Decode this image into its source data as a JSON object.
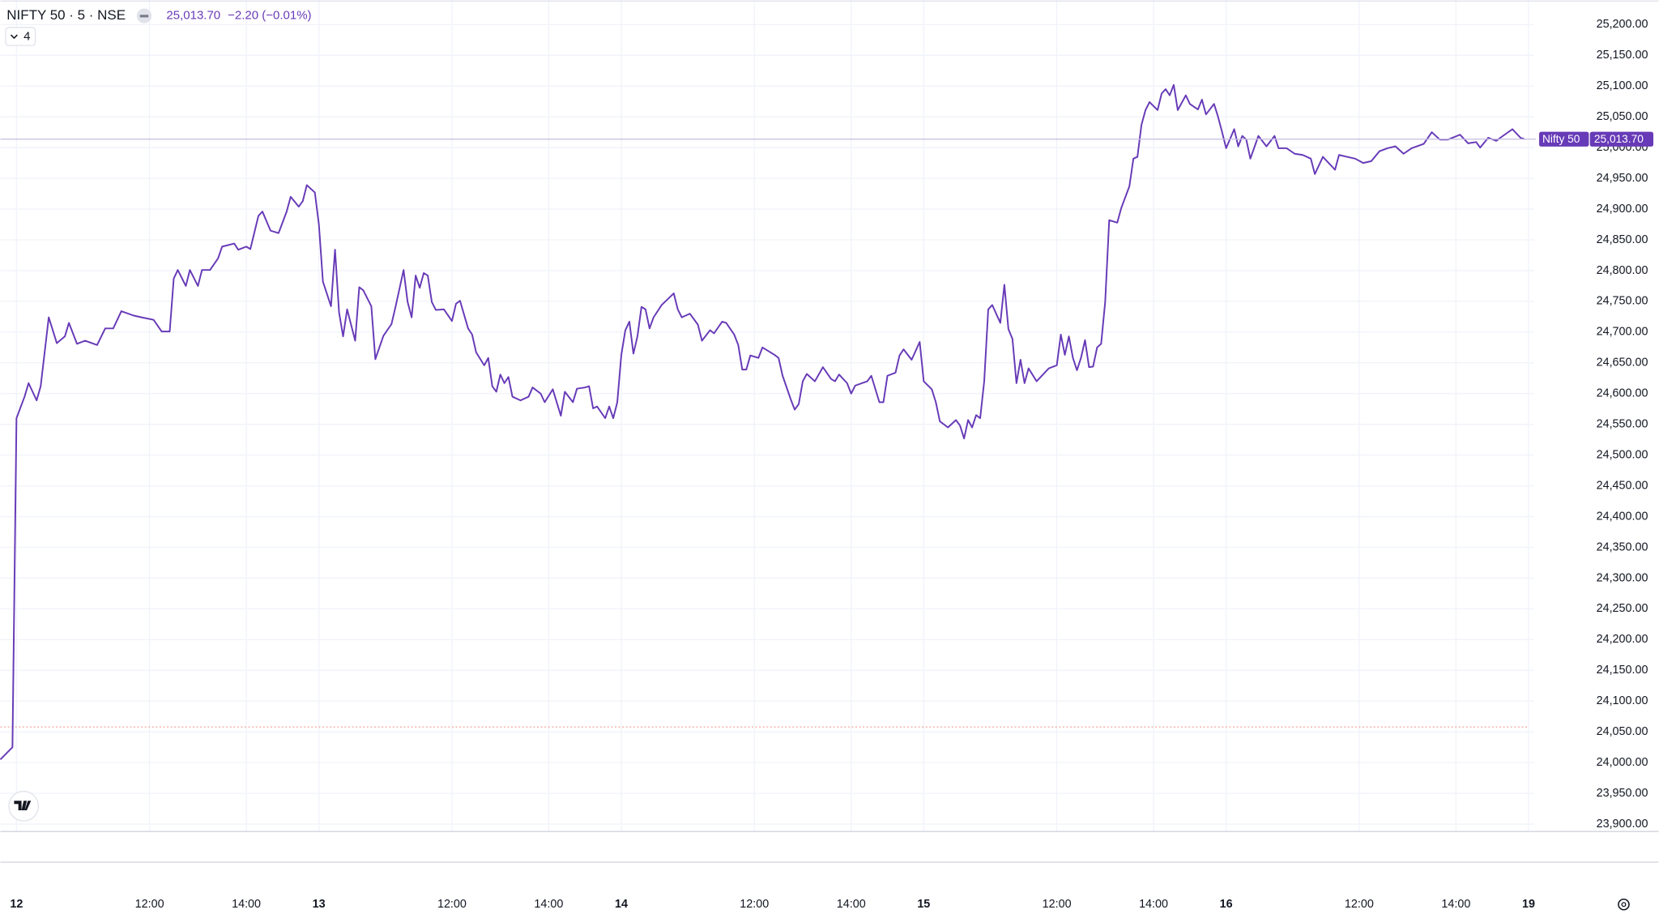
{
  "chart_data": {
    "type": "line",
    "title": "NIFTY 50 · 5 · NSE",
    "last_value_label": "25,013.70",
    "change_label": "−2.20 (−0.01%)",
    "indicator_count": 4,
    "color": "#673ab7",
    "grid": true,
    "reference_line": {
      "value": 24058,
      "color": "#f28b82"
    },
    "xlim": [
      -4,
      375
    ],
    "xticks": [
      {
        "value": 0,
        "label": "12"
      },
      {
        "value": 33,
        "label": "12:00"
      },
      {
        "value": 57,
        "label": "14:00"
      },
      {
        "value": 75,
        "label": "13"
      },
      {
        "value": 108,
        "label": "12:00"
      },
      {
        "value": 132,
        "label": "14:00"
      },
      {
        "value": 150,
        "label": "14"
      },
      {
        "value": 183,
        "label": "12:00"
      },
      {
        "value": 207,
        "label": "14:00"
      },
      {
        "value": 225,
        "label": "15"
      },
      {
        "value": 258,
        "label": "12:00"
      },
      {
        "value": 282,
        "label": "14:00"
      },
      {
        "value": 300,
        "label": "16"
      },
      {
        "value": 333,
        "label": "12:00"
      },
      {
        "value": 357,
        "label": "14:00"
      },
      {
        "value": 375,
        "label": "19"
      }
    ],
    "ylim": [
      23888,
      25240
    ],
    "yticks": [
      {
        "value": 23900,
        "label": "23,900.00"
      },
      {
        "value": 23950,
        "label": "23,950.00"
      },
      {
        "value": 24000,
        "label": "24,000.00"
      },
      {
        "value": 24050,
        "label": "24,050.00"
      },
      {
        "value": 24100,
        "label": "24,100.00"
      },
      {
        "value": 24150,
        "label": "24,150.00"
      },
      {
        "value": 24200,
        "label": "24,200.00"
      },
      {
        "value": 24250,
        "label": "24,250.00"
      },
      {
        "value": 24300,
        "label": "24,300.00"
      },
      {
        "value": 24350,
        "label": "24,350.00"
      },
      {
        "value": 24400,
        "label": "24,400.00"
      },
      {
        "value": 24450,
        "label": "24,450.00"
      },
      {
        "value": 24500,
        "label": "24,500.00"
      },
      {
        "value": 24550,
        "label": "24,550.00"
      },
      {
        "value": 24600,
        "label": "24,600.00"
      },
      {
        "value": 24650,
        "label": "24,650.00"
      },
      {
        "value": 24700,
        "label": "24,700.00"
      },
      {
        "value": 24750,
        "label": "24,750.00"
      },
      {
        "value": 24800,
        "label": "24,800.00"
      },
      {
        "value": 24850,
        "label": "24,850.00"
      },
      {
        "value": 24900,
        "label": "24,900.00"
      },
      {
        "value": 24950,
        "label": "24,950.00"
      },
      {
        "value": 25000,
        "label": "25,000.00"
      },
      {
        "value": 25050,
        "label": "25,050.00"
      },
      {
        "value": 25100,
        "label": "25,100.00"
      },
      {
        "value": 25150,
        "label": "25,150.00"
      },
      {
        "value": 25200,
        "label": "25,200.00"
      }
    ],
    "x": [
      -4,
      -1,
      0,
      2,
      3,
      5,
      6,
      8,
      10,
      12,
      13,
      15,
      17,
      20,
      22,
      24,
      26,
      29,
      31,
      34,
      36,
      38,
      39,
      40,
      42,
      43,
      45,
      46,
      48,
      50,
      51,
      54,
      55,
      57,
      58,
      60,
      61,
      63,
      65,
      67,
      68,
      70,
      71,
      72,
      74,
      75,
      76,
      78,
      79,
      80,
      81,
      82,
      84,
      85,
      86,
      88,
      89,
      91,
      93,
      94,
      96,
      97,
      98,
      99,
      100,
      101,
      102,
      103,
      104,
      106,
      108,
      109,
      110,
      112,
      113,
      114,
      116,
      117,
      118,
      119,
      120,
      121,
      122,
      123,
      125,
      127,
      128,
      130,
      131,
      133,
      135,
      136,
      138,
      139,
      141,
      142,
      143,
      144,
      146,
      147,
      148,
      149,
      150,
      151,
      152,
      153,
      154,
      155,
      156,
      157,
      158,
      160,
      163,
      164,
      165,
      167,
      169,
      170,
      172,
      173,
      175,
      176,
      178,
      179,
      180,
      181,
      182,
      184,
      185,
      188,
      189,
      190,
      192,
      193,
      194,
      195,
      196,
      198,
      200,
      202,
      203,
      204,
      206,
      207,
      208,
      211,
      212,
      214,
      215,
      216,
      218,
      219,
      220,
      222,
      224,
      225,
      227,
      228,
      229,
      231,
      233,
      234,
      235,
      236,
      237,
      238,
      239,
      240,
      241,
      242,
      244,
      245,
      246,
      247,
      248,
      249,
      250,
      251,
      253,
      255,
      256,
      258,
      259,
      260,
      261,
      262,
      263,
      264,
      265,
      266,
      267,
      268,
      269,
      270,
      271,
      273,
      274,
      276,
      277,
      278,
      279,
      280,
      281,
      283,
      284,
      285,
      286,
      287,
      288,
      290,
      291,
      293,
      294,
      295,
      297,
      298,
      299,
      300,
      302,
      303,
      304,
      305,
      306,
      308,
      310,
      312,
      313,
      315,
      317,
      319,
      321,
      322,
      324,
      327,
      328,
      330,
      332,
      334,
      336,
      338,
      340,
      342,
      344,
      346,
      349,
      351,
      353,
      355,
      358,
      360,
      362,
      363,
      365,
      367,
      368,
      371,
      373,
      374
    ],
    "series": [
      {
        "name": "Nifty 50",
        "color": "#673ab7",
        "values": [
          24005,
          24025,
          24560,
          24595,
          24617,
          24589,
          24612,
          24724,
          24682,
          24693,
          24715,
          24681,
          24686,
          24679,
          24706,
          24706,
          24734,
          24727,
          24724,
          24720,
          24701,
          24701,
          24787,
          24801,
          24775,
          24801,
          24775,
          24801,
          24801,
          24820,
          24839,
          24844,
          24834,
          24839,
          24835,
          24889,
          24896,
          24865,
          24861,
          24896,
          24920,
          24904,
          24913,
          24939,
          24927,
          24875,
          24782,
          24742,
          24834,
          24732,
          24693,
          24737,
          24686,
          24773,
          24768,
          24742,
          24656,
          24694,
          24713,
          24741,
          24801,
          24749,
          24724,
          24792,
          24772,
          24796,
          24792,
          24749,
          24736,
          24737,
          24718,
          24746,
          24751,
          24706,
          24696,
          24667,
          24646,
          24658,
          24612,
          24603,
          24631,
          24617,
          24627,
          24595,
          24589,
          24595,
          24610,
          24600,
          24586,
          24607,
          24564,
          24603,
          24586,
          24608,
          24610,
          24612,
          24576,
          24579,
          24560,
          24579,
          24560,
          24586,
          24663,
          24703,
          24717,
          24665,
          24693,
          24741,
          24737,
          24706,
          24724,
          24744,
          24763,
          24737,
          24724,
          24730,
          24712,
          24686,
          24703,
          24698,
          24717,
          24715,
          24696,
          24679,
          24639,
          24639,
          24662,
          24658,
          24675,
          24663,
          24658,
          24629,
          24591,
          24574,
          24583,
          24620,
          24632,
          24620,
          24643,
          24624,
          24620,
          24631,
          24617,
          24600,
          24613,
          24620,
          24629,
          24586,
          24586,
          24629,
          24634,
          24662,
          24672,
          24655,
          24684,
          24620,
          24607,
          24586,
          24555,
          24545,
          24557,
          24548,
          24527,
          24557,
          24545,
          24565,
          24560,
          24620,
          24737,
          24744,
          24715,
          24777,
          24705,
          24689,
          24617,
          24655,
          24617,
          24641,
          24620,
          24634,
          24641,
          24646,
          24696,
          24663,
          24693,
          24658,
          24638,
          24658,
          24687,
          24643,
          24644,
          24675,
          24681,
          24749,
          24882,
          24878,
          24902,
          24937,
          24982,
          24985,
          25037,
          25061,
          25074,
          25061,
          25088,
          25095,
          25085,
          25102,
          25061,
          25085,
          25071,
          25062,
          25078,
          25054,
          25071,
          25050,
          25025,
          24999,
          25030,
          25002,
          25019,
          25013,
          24982,
          25019,
          25002,
          25019,
          24999,
          24999,
          24990,
          24988,
          24982,
          24957,
          24985,
          24964,
          24988,
          24985,
          24982,
          24975,
          24978,
          24994,
          24999,
          25002,
          24990,
          24999,
          25006,
          25025,
          25013,
          25013,
          25021,
          25007,
          25009,
          25000,
          25016,
          25011,
          25016,
          25030,
          25016,
          25013.7
        ]
      }
    ]
  }
}
